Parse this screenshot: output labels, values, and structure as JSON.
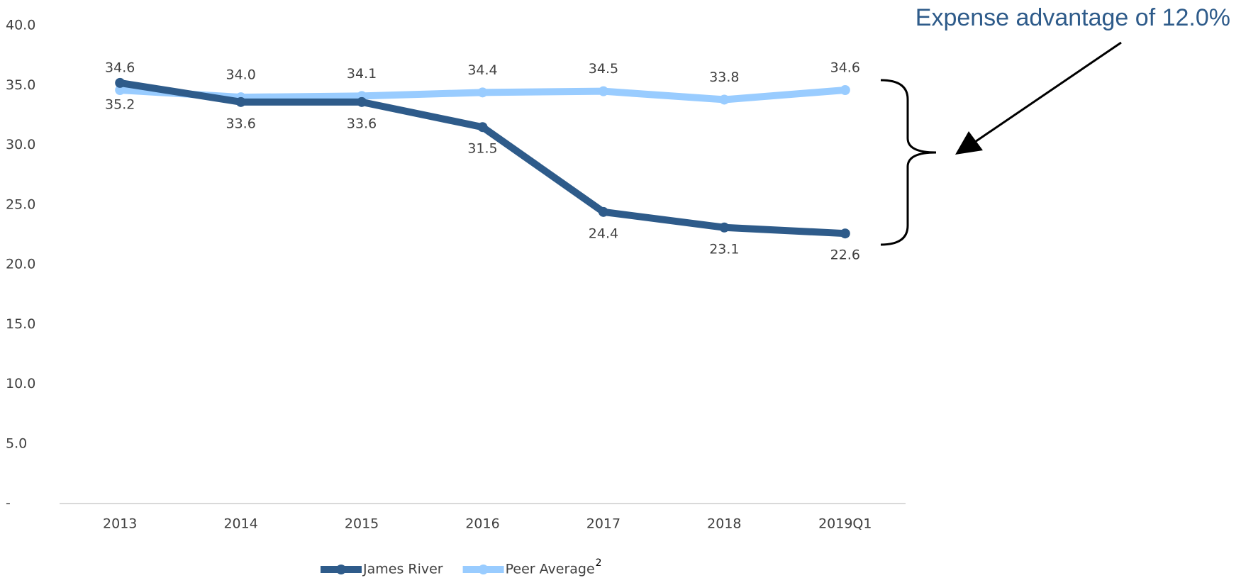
{
  "chart_data": {
    "type": "line",
    "annotation": "Expense advantage of 12.0%",
    "categories": [
      "2013",
      "2014",
      "2015",
      "2016",
      "2017",
      "2018",
      "2019Q1"
    ],
    "series": [
      {
        "name": "James River",
        "color": "#2e5b8a",
        "values": [
          35.2,
          33.6,
          33.6,
          31.5,
          24.4,
          23.1,
          22.6
        ],
        "value_labels": [
          "35.2",
          "33.6",
          "33.6",
          "31.5",
          "24.4",
          "23.1",
          "22.6"
        ],
        "label_position": "below"
      },
      {
        "name": "Peer Average",
        "footnote_marker": "2",
        "color": "#99ccff",
        "values": [
          34.6,
          34.0,
          34.1,
          34.4,
          34.5,
          33.8,
          34.6
        ],
        "value_labels": [
          "34.6",
          "34.0",
          "34.1",
          "34.4",
          "34.5",
          "33.8",
          "34.6"
        ],
        "label_position": "above"
      }
    ],
    "ylim": [
      0,
      40
    ],
    "yticks": [
      {
        "value": 0,
        "label": "-"
      },
      {
        "value": 5,
        "label": "5.0"
      },
      {
        "value": 10,
        "label": "10.0"
      },
      {
        "value": 15,
        "label": "15.0"
      },
      {
        "value": 20,
        "label": "20.0"
      },
      {
        "value": 25,
        "label": "25.0"
      },
      {
        "value": 30,
        "label": "30.0"
      },
      {
        "value": 35,
        "label": "35.0"
      },
      {
        "value": 40,
        "label": "40.0"
      }
    ],
    "grid": false,
    "legend": "bottom"
  }
}
